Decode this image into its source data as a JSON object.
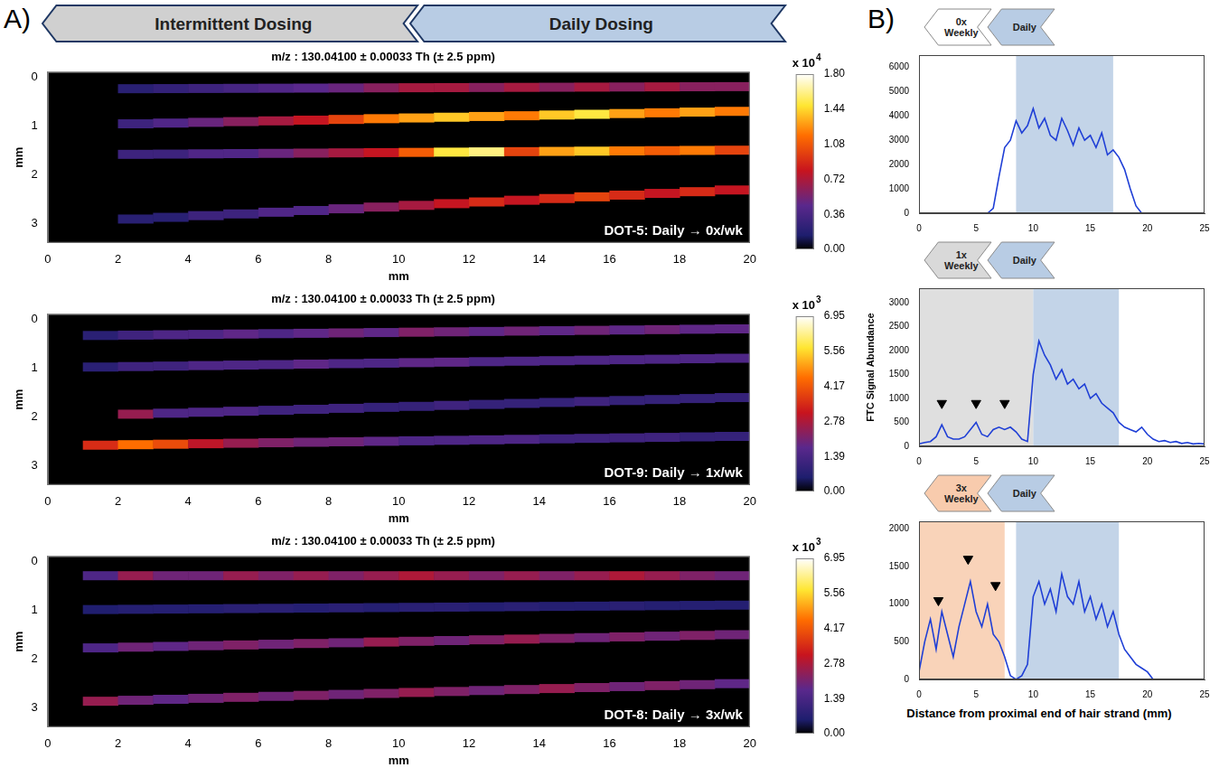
{
  "panels": [
    {
      "letter": "A)",
      "banner": [
        {
          "label": "Intermittent Dosing",
          "color": "#d0d0d0"
        },
        {
          "label": "Daily Dosing",
          "color": "#b8cce4"
        }
      ]
    },
    {
      "letter": "B)",
      "x_label": "Distance from proximal end of hair strand (mm)"
    }
  ],
  "chart_data": [
    {
      "type": "heatmap",
      "title": "m/z : 130.04100 ± 0.00033 Th (± 2.5 ppm)",
      "annotation": "DOT-5: Daily → 0x/wk",
      "x_label": "mm",
      "y_label": "mm",
      "xlim": [
        0,
        20
      ],
      "xticks": [
        0,
        2,
        4,
        6,
        8,
        10,
        12,
        14,
        16,
        18,
        20
      ],
      "ylim": [
        -0.1,
        3.4
      ],
      "yticks": [
        0,
        1,
        2,
        3
      ],
      "x_bins": [
        0,
        1,
        2,
        3,
        4,
        5,
        6,
        7,
        8,
        9,
        10,
        11,
        12,
        13,
        14,
        15,
        16,
        17,
        18,
        19,
        20
      ],
      "strands": [
        {
          "y": [
            0.25,
            0.2
          ],
          "values": [
            null,
            null,
            0.2,
            0.25,
            0.3,
            0.35,
            0.4,
            0.45,
            0.5,
            0.6,
            0.7,
            0.7,
            0.6,
            0.7,
            0.6,
            0.7,
            0.6,
            0.7,
            0.6,
            0.6
          ]
        },
        {
          "y": [
            1.0,
            0.7
          ],
          "values": [
            null,
            null,
            0.3,
            0.4,
            0.5,
            0.6,
            0.7,
            0.8,
            1.0,
            1.2,
            1.3,
            1.4,
            1.3,
            1.2,
            1.4,
            1.5,
            1.3,
            1.2,
            1.3,
            1.2
          ]
        },
        {
          "y": [
            1.6,
            1.5
          ],
          "values": [
            null,
            null,
            0.3,
            0.3,
            0.4,
            0.4,
            0.5,
            0.6,
            0.7,
            0.8,
            1.1,
            1.5,
            1.6,
            1.0,
            1.3,
            1.4,
            1.2,
            1.1,
            1.2,
            1.0
          ]
        },
        {
          "y": [
            3.0,
            2.3
          ],
          "values": [
            null,
            null,
            0.2,
            0.2,
            0.3,
            0.3,
            0.4,
            0.4,
            0.5,
            0.6,
            0.7,
            0.8,
            0.9,
            0.8,
            0.9,
            1.0,
            0.9,
            0.8,
            0.9,
            0.8
          ]
        }
      ],
      "colorbar": {
        "multiplier": "x 10",
        "exponent": "4",
        "range": [
          0,
          1.8
        ],
        "ticks": [
          {
            "value": 0,
            "label": "0.00"
          },
          {
            "value": 0.36,
            "label": "0.36"
          },
          {
            "value": 0.72,
            "label": "0.72"
          },
          {
            "value": 1.08,
            "label": "1.08"
          },
          {
            "value": 1.44,
            "label": "1.44"
          },
          {
            "value": 1.8,
            "label": "1.80"
          }
        ]
      }
    },
    {
      "type": "heatmap",
      "title": "m/z : 130.04100 ± 0.00033 Th (± 2.5 ppm)",
      "annotation": "DOT-9: Daily → 1x/wk",
      "x_label": "mm",
      "y_label": "mm",
      "xlim": [
        0,
        20
      ],
      "xticks": [
        0,
        2,
        4,
        6,
        8,
        10,
        12,
        14,
        16,
        18,
        20
      ],
      "ylim": [
        -0.1,
        3.4
      ],
      "yticks": [
        0,
        1,
        2,
        3
      ],
      "x_bins": [
        0,
        1,
        2,
        3,
        4,
        5,
        6,
        7,
        8,
        9,
        10,
        11,
        12,
        13,
        14,
        15,
        16,
        17,
        18,
        19,
        20
      ],
      "strands": [
        {
          "y": [
            0.35,
            0.2
          ],
          "values": [
            null,
            0.8,
            1.2,
            1.5,
            1.5,
            1.8,
            1.5,
            1.8,
            2.0,
            1.8,
            2.2,
            2.0,
            1.8,
            2.0,
            1.8,
            2.0,
            1.8,
            2.0,
            1.8,
            1.8
          ]
        },
        {
          "y": [
            1.0,
            0.8
          ],
          "values": [
            null,
            0.8,
            1.2,
            1.2,
            1.5,
            1.5,
            1.5,
            1.8,
            1.5,
            1.5,
            1.8,
            1.8,
            1.5,
            1.5,
            1.5,
            1.5,
            1.5,
            1.5,
            1.5,
            1.5
          ]
        },
        {
          "y": [
            2.0,
            1.6
          ],
          "values": [
            null,
            null,
            2.5,
            1.5,
            1.5,
            1.5,
            1.2,
            1.2,
            1.2,
            1.0,
            1.0,
            1.2,
            1.0,
            1.0,
            1.0,
            1.2,
            1.0,
            1.0,
            1.0,
            1.0
          ]
        },
        {
          "y": [
            2.6,
            2.4
          ],
          "values": [
            null,
            3.5,
            4.5,
            4.0,
            3.0,
            2.5,
            2.2,
            2.0,
            2.0,
            1.8,
            1.5,
            1.5,
            1.5,
            1.5,
            1.2,
            1.2,
            1.2,
            1.2,
            1.0,
            1.0
          ]
        }
      ],
      "colorbar": {
        "multiplier": "x 10",
        "exponent": "3",
        "range": [
          0,
          6.95
        ],
        "ticks": [
          {
            "value": 0,
            "label": "0.00"
          },
          {
            "value": 1.39,
            "label": "1.39"
          },
          {
            "value": 2.78,
            "label": "2.78"
          },
          {
            "value": 4.17,
            "label": "4.17"
          },
          {
            "value": 5.56,
            "label": "5.56"
          },
          {
            "value": 6.95,
            "label": "6.95"
          }
        ]
      }
    },
    {
      "type": "heatmap",
      "title": "m/z : 130.04100 ± 0.00033 Th (± 2.5 ppm)",
      "annotation": "DOT-8: Daily → 3x/wk",
      "x_label": "mm",
      "y_label": "mm",
      "xlim": [
        0,
        20
      ],
      "xticks": [
        0,
        2,
        4,
        6,
        8,
        10,
        12,
        14,
        16,
        18,
        20
      ],
      "ylim": [
        -0.1,
        3.4
      ],
      "yticks": [
        0,
        1,
        2,
        3
      ],
      "x_bins": [
        0,
        1,
        2,
        3,
        4,
        5,
        6,
        7,
        8,
        9,
        10,
        11,
        12,
        13,
        14,
        15,
        16,
        17,
        18,
        19,
        20
      ],
      "strands": [
        {
          "y": [
            0.3,
            0.3
          ],
          "values": [
            null,
            1.5,
            2.5,
            2.0,
            2.0,
            2.5,
            2.2,
            2.5,
            2.2,
            2.5,
            2.8,
            2.5,
            2.2,
            2.5,
            2.2,
            2.5,
            2.8,
            2.5,
            2.2,
            2.0
          ]
        },
        {
          "y": [
            1.0,
            0.9
          ],
          "values": [
            null,
            0.6,
            0.7,
            0.7,
            0.7,
            0.8,
            0.8,
            0.7,
            0.8,
            0.7,
            0.8,
            0.8,
            0.7,
            0.8,
            0.7,
            0.7,
            0.8,
            0.7,
            0.7,
            0.7
          ]
        },
        {
          "y": [
            1.8,
            1.5
          ],
          "values": [
            null,
            1.5,
            2.0,
            1.8,
            2.0,
            2.2,
            2.0,
            2.2,
            2.0,
            2.5,
            2.2,
            2.0,
            2.2,
            2.5,
            2.2,
            2.0,
            2.2,
            2.0,
            2.2,
            2.0
          ]
        },
        {
          "y": [
            2.9,
            2.5
          ],
          "values": [
            null,
            2.5,
            2.0,
            1.8,
            2.0,
            2.2,
            2.0,
            2.2,
            2.0,
            2.2,
            2.5,
            2.2,
            2.0,
            2.2,
            2.5,
            2.2,
            2.0,
            2.2,
            2.0,
            1.8
          ]
        }
      ],
      "colorbar": {
        "multiplier": "x 10",
        "exponent": "3",
        "range": [
          0,
          6.95
        ],
        "ticks": [
          {
            "value": 0,
            "label": "0.00"
          },
          {
            "value": 1.39,
            "label": "1.39"
          },
          {
            "value": 2.78,
            "label": "2.78"
          },
          {
            "value": 4.17,
            "label": "4.17"
          },
          {
            "value": 5.56,
            "label": "5.56"
          },
          {
            "value": 6.95,
            "label": "6.95"
          }
        ]
      }
    },
    {
      "type": "line",
      "color": "#1f3fd6",
      "phases": [
        {
          "label": "0x Weekly",
          "color": "#ffffff"
        },
        {
          "label": "Daily",
          "color": "#b8cce4",
          "x": [
            8.5,
            17
          ]
        }
      ],
      "xlim": [
        0,
        25
      ],
      "xticks": [
        0,
        5,
        10,
        15,
        20,
        25
      ],
      "ylim": [
        0,
        6500
      ],
      "yticks": [
        0,
        1000,
        2000,
        3000,
        4000,
        5000,
        6000
      ],
      "x": [
        0,
        0.5,
        1,
        1.5,
        2,
        2.5,
        3,
        3.5,
        4,
        4.5,
        5,
        5.5,
        6,
        6.5,
        7,
        7.5,
        8,
        8.5,
        9,
        9.5,
        10,
        10.5,
        11,
        11.5,
        12,
        12.5,
        13,
        13.5,
        14,
        14.5,
        15,
        15.5,
        16,
        16.5,
        17,
        17.5,
        18,
        18.5,
        19,
        19.5,
        20,
        20.5,
        21,
        21.5,
        22,
        22.5,
        23,
        23.5,
        24,
        24.5,
        25
      ],
      "values": [
        0,
        0,
        0,
        0,
        0,
        0,
        0,
        0,
        0,
        0,
        0,
        0,
        0,
        200,
        1500,
        2700,
        3000,
        3800,
        3300,
        3600,
        4300,
        3500,
        3900,
        3200,
        3000,
        3900,
        3400,
        2800,
        3500,
        3000,
        3200,
        2700,
        3300,
        2400,
        2600,
        2300,
        1800,
        1000,
        300,
        0,
        0,
        0,
        0,
        0,
        0,
        0,
        0,
        0,
        0,
        0,
        0
      ]
    },
    {
      "type": "line",
      "color": "#1f3fd6",
      "y_label": "FTC Signal Abundance",
      "phases": [
        {
          "label": "1x Weekly",
          "color": "#d9d9d9",
          "x": [
            0,
            10
          ]
        },
        {
          "label": "Daily",
          "color": "#b8cce4",
          "x": [
            10,
            17.5
          ]
        }
      ],
      "xlim": [
        0,
        25
      ],
      "xticks": [
        0,
        5,
        10,
        15,
        20,
        25
      ],
      "ylim": [
        0,
        3300
      ],
      "yticks": [
        0,
        500,
        1000,
        1500,
        2000,
        2500,
        3000
      ],
      "x": [
        0,
        0.5,
        1,
        1.5,
        2,
        2.5,
        3,
        3.5,
        4,
        4.5,
        5,
        5.5,
        6,
        6.5,
        7,
        7.5,
        8,
        8.5,
        9,
        9.5,
        10,
        10.5,
        11,
        11.5,
        12,
        12.5,
        13,
        13.5,
        14,
        14.5,
        15,
        15.5,
        16,
        16.5,
        17,
        17.5,
        18,
        18.5,
        19,
        19.5,
        20,
        20.5,
        21,
        21.5,
        22,
        22.5,
        23,
        23.5,
        24,
        24.5,
        25
      ],
      "values": [
        50,
        80,
        100,
        200,
        450,
        200,
        150,
        150,
        200,
        350,
        500,
        250,
        200,
        350,
        400,
        350,
        400,
        300,
        150,
        100,
        1500,
        2200,
        1900,
        1700,
        1400,
        1600,
        1300,
        1400,
        1200,
        1300,
        1000,
        1100,
        900,
        800,
        700,
        500,
        400,
        350,
        300,
        400,
        250,
        150,
        100,
        120,
        80,
        100,
        60,
        80,
        50,
        60,
        50
      ],
      "arrowheads": {
        "x": [
          2,
          5,
          7.5
        ],
        "y": [
          900,
          900,
          900
        ]
      }
    },
    {
      "type": "line",
      "color": "#1f3fd6",
      "phases": [
        {
          "label": "3x Weekly",
          "color": "#f8cbad",
          "x": [
            0,
            7.5
          ]
        },
        {
          "label": "Daily",
          "color": "#b8cce4",
          "x": [
            8.5,
            17.5
          ]
        }
      ],
      "xlim": [
        0,
        25
      ],
      "xticks": [
        0,
        5,
        10,
        15,
        20,
        25
      ],
      "ylim": [
        0,
        2100
      ],
      "yticks": [
        0,
        500,
        1000,
        1500,
        2000
      ],
      "x": [
        0,
        0.5,
        1,
        1.5,
        2,
        2.5,
        3,
        3.5,
        4,
        4.5,
        5,
        5.5,
        6,
        6.5,
        7,
        7.5,
        8,
        8.5,
        9,
        9.5,
        10,
        10.5,
        11,
        11.5,
        12,
        12.5,
        13,
        13.5,
        14,
        14.5,
        15,
        15.5,
        16,
        16.5,
        17,
        17.5,
        18,
        18.5,
        19,
        19.5,
        20,
        20.5,
        21,
        21.5,
        22,
        22.5,
        23,
        23.5,
        24,
        24.5,
        25
      ],
      "values": [
        100,
        500,
        800,
        400,
        900,
        600,
        300,
        700,
        1000,
        1300,
        900,
        700,
        1000,
        600,
        500,
        300,
        50,
        0,
        50,
        200,
        1100,
        1300,
        1000,
        1200,
        900,
        1400,
        1100,
        1000,
        1300,
        900,
        1100,
        800,
        1000,
        700,
        900,
        600,
        400,
        300,
        200,
        150,
        100,
        0,
        0,
        0,
        0,
        0,
        0,
        0,
        0,
        0,
        0
      ],
      "arrowheads": {
        "x": [
          1.7,
          4.3,
          6.7
        ],
        "y": [
          1050,
          1600,
          1250
        ]
      }
    }
  ]
}
